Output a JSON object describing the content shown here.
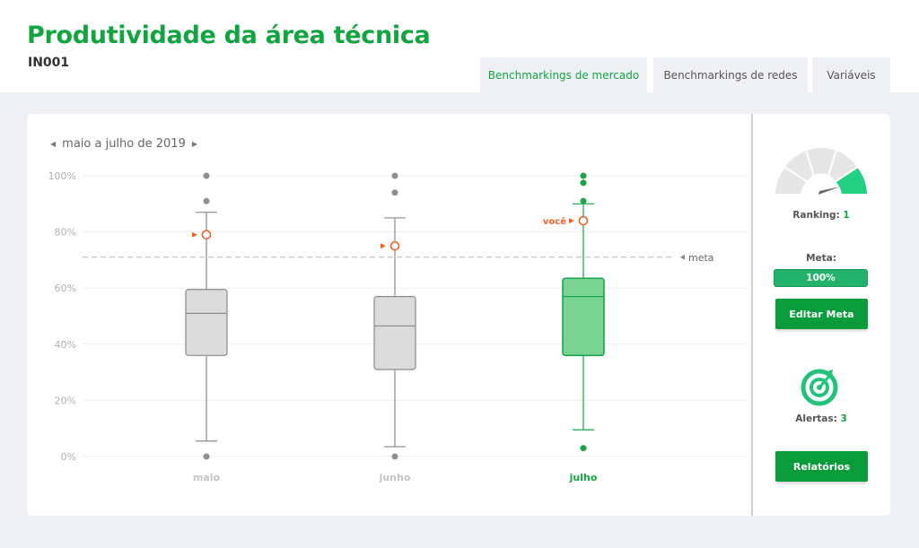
{
  "page": {
    "title": "Produtividade da área técnica",
    "code": "IN001"
  },
  "tabs": [
    {
      "label": "Benchmarkings de mercado",
      "active": true
    },
    {
      "label": "Benchmarkings de redes",
      "active": false
    },
    {
      "label": "Variáveis",
      "active": false
    }
  ],
  "period": {
    "label": "maio a julho de 2019",
    "prev_icon": "caret-left-icon",
    "next_icon": "caret-right-icon"
  },
  "colors": {
    "brand": "#11a540",
    "gray_box": "#dcdcdc",
    "gray_line": "#8a8a8a",
    "green_box": "#79d494",
    "green_line": "#1aa44a",
    "you_marker": "#f0612a"
  },
  "chart_data": {
    "type": "box",
    "categories": [
      "maio",
      "junho",
      "julho"
    ],
    "y_ticks": [
      "0%",
      "20%",
      "40%",
      "60%",
      "80%",
      "100%"
    ],
    "ylim": [
      0,
      100
    ],
    "grid": true,
    "highlight_category": "julho",
    "boxes": [
      {
        "category": "maio",
        "whisker_low": 5.5,
        "q1": 36,
        "median": 51,
        "q3": 59.5,
        "whisker_high": 87,
        "outliers": [
          0,
          91,
          100
        ],
        "you": 79
      },
      {
        "category": "junho",
        "whisker_low": 3.5,
        "q1": 31,
        "median": 46.5,
        "q3": 57,
        "whisker_high": 85,
        "outliers": [
          0,
          94,
          100
        ],
        "you": 75
      },
      {
        "category": "julho",
        "whisker_low": 9.5,
        "q1": 36,
        "median": 57,
        "q3": 63.5,
        "whisker_high": 90,
        "outliers": [
          3,
          91,
          97.5,
          100
        ],
        "you": 84
      }
    ],
    "meta_line": 71,
    "meta_label": "meta",
    "you_label": "você"
  },
  "side": {
    "ranking_label": "Ranking:",
    "ranking_value": "1",
    "gauge_level": 1,
    "meta_label": "Meta:",
    "meta_value": "100%",
    "edit_button": "Editar Meta",
    "alerts_label": "Alertas:",
    "alerts_value": "3",
    "target_icon": "target-icon",
    "reports_button": "Relatórios"
  }
}
